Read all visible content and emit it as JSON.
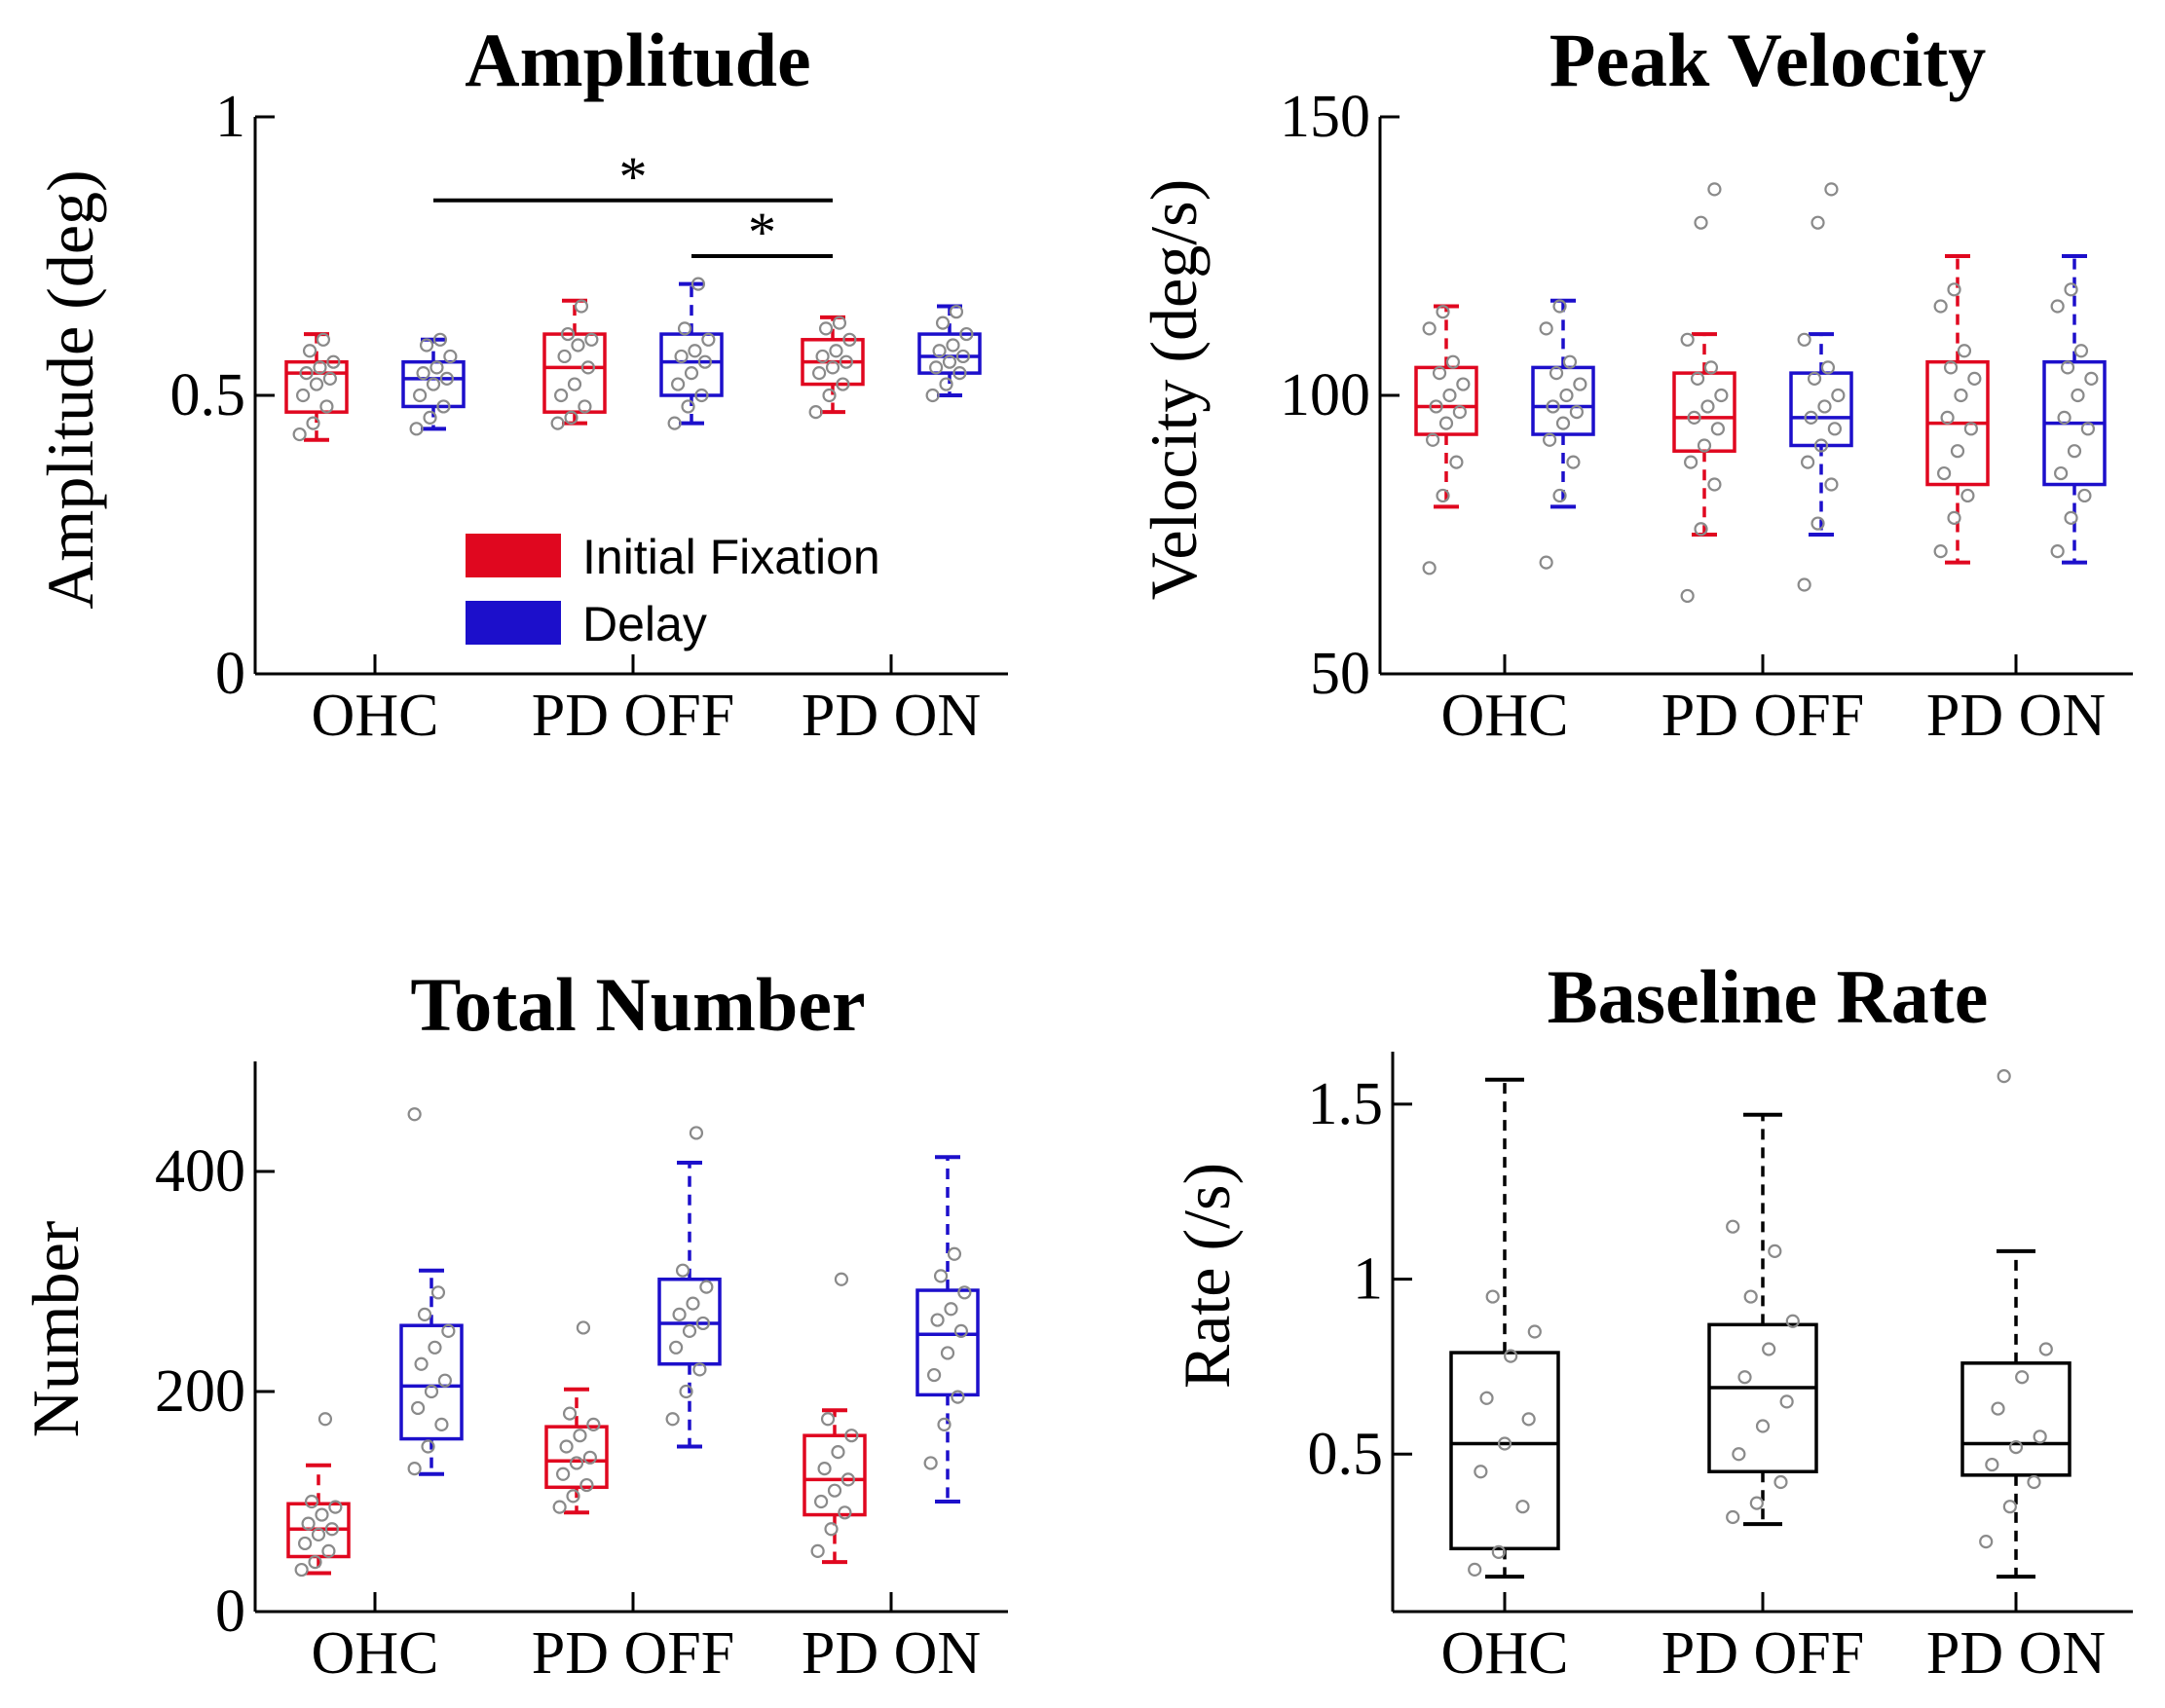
{
  "colors": {
    "initial": "#e0071f",
    "delay": "#1c0fcb",
    "black": "#000000",
    "dots": "#8a8a8a"
  },
  "legend": [
    {
      "label": "Initial Fixation",
      "color": "#e0071f"
    },
    {
      "label": "Delay",
      "color": "#1c0fcb"
    }
  ],
  "chart_data": [
    {
      "type": "box",
      "title": "Amplitude",
      "ylabel": "Amplitude (deg)",
      "ylim": [
        0,
        1
      ],
      "yticks": [
        0,
        0.5,
        1
      ],
      "ytick_labels": [
        "0",
        "0.5",
        "1"
      ],
      "groups": [
        "OHC",
        "PD OFF",
        "PD ON"
      ],
      "significance": [
        {
          "from": "OHC:Delay",
          "to": "PD ON:Initial Fixation",
          "y": 0.85,
          "label": "*"
        },
        {
          "from": "PD OFF:Delay",
          "to": "PD ON:Initial Fixation",
          "y": 0.75,
          "label": "*"
        }
      ],
      "boxes": [
        {
          "group": "OHC",
          "series": "Initial Fixation",
          "whisker_low": 0.42,
          "q1": 0.47,
          "median": 0.54,
          "q3": 0.56,
          "whisker_high": 0.61,
          "points": [
            0.43,
            0.45,
            0.48,
            0.5,
            0.52,
            0.53,
            0.54,
            0.55,
            0.56,
            0.58,
            0.6
          ]
        },
        {
          "group": "OHC",
          "series": "Delay",
          "whisker_low": 0.44,
          "q1": 0.48,
          "median": 0.53,
          "q3": 0.56,
          "whisker_high": 0.6,
          "points": [
            0.44,
            0.46,
            0.48,
            0.5,
            0.52,
            0.53,
            0.54,
            0.55,
            0.57,
            0.59,
            0.6
          ]
        },
        {
          "group": "PD OFF",
          "series": "Initial Fixation",
          "whisker_low": 0.45,
          "q1": 0.47,
          "median": 0.55,
          "q3": 0.61,
          "whisker_high": 0.67,
          "points": [
            0.45,
            0.46,
            0.48,
            0.5,
            0.52,
            0.55,
            0.57,
            0.59,
            0.6,
            0.61,
            0.66
          ]
        },
        {
          "group": "PD OFF",
          "series": "Delay",
          "whisker_low": 0.45,
          "q1": 0.5,
          "median": 0.56,
          "q3": 0.61,
          "whisker_high": 0.7,
          "points": [
            0.45,
            0.48,
            0.5,
            0.52,
            0.54,
            0.56,
            0.57,
            0.58,
            0.6,
            0.62,
            0.7
          ]
        },
        {
          "group": "PD ON",
          "series": "Initial Fixation",
          "whisker_low": 0.47,
          "q1": 0.52,
          "median": 0.56,
          "q3": 0.6,
          "whisker_high": 0.64,
          "points": [
            0.47,
            0.5,
            0.52,
            0.54,
            0.55,
            0.56,
            0.57,
            0.58,
            0.6,
            0.62,
            0.63
          ]
        },
        {
          "group": "PD ON",
          "series": "Delay",
          "whisker_low": 0.5,
          "q1": 0.54,
          "median": 0.57,
          "q3": 0.61,
          "whisker_high": 0.66,
          "points": [
            0.5,
            0.52,
            0.54,
            0.55,
            0.56,
            0.57,
            0.58,
            0.59,
            0.61,
            0.63,
            0.65
          ]
        }
      ]
    },
    {
      "type": "box",
      "title": "Peak Velocity",
      "ylabel": "Velocity (deg/s)",
      "ylim": [
        50,
        150
      ],
      "yticks": [
        50,
        100,
        150
      ],
      "ytick_labels": [
        "50",
        "100",
        "150"
      ],
      "groups": [
        "OHC",
        "PD OFF",
        "PD ON"
      ],
      "boxes": [
        {
          "group": "OHC",
          "series": "Initial Fixation",
          "whisker_low": 80,
          "q1": 93,
          "median": 98,
          "q3": 105,
          "whisker_high": 116,
          "points": [
            69,
            82,
            88,
            92,
            95,
            97,
            98,
            100,
            102,
            104,
            106,
            112,
            115
          ]
        },
        {
          "group": "OHC",
          "series": "Delay",
          "whisker_low": 80,
          "q1": 93,
          "median": 98,
          "q3": 105,
          "whisker_high": 117,
          "points": [
            70,
            82,
            88,
            92,
            95,
            97,
            98,
            100,
            102,
            104,
            106,
            112,
            116
          ]
        },
        {
          "group": "PD OFF",
          "series": "Initial Fixation",
          "whisker_low": 75,
          "q1": 90,
          "median": 96,
          "q3": 104,
          "whisker_high": 111,
          "points": [
            64,
            76,
            84,
            88,
            91,
            94,
            96,
            98,
            100,
            103,
            105,
            110,
            131,
            137
          ]
        },
        {
          "group": "PD OFF",
          "series": "Delay",
          "whisker_low": 75,
          "q1": 91,
          "median": 96,
          "q3": 104,
          "whisker_high": 111,
          "points": [
            66,
            77,
            84,
            88,
            91,
            94,
            96,
            98,
            100,
            103,
            105,
            110,
            131,
            137
          ]
        },
        {
          "group": "PD ON",
          "series": "Initial Fixation",
          "whisker_low": 70,
          "q1": 84,
          "median": 95,
          "q3": 106,
          "whisker_high": 125,
          "points": [
            72,
            78,
            82,
            86,
            90,
            94,
            96,
            100,
            103,
            105,
            108,
            116,
            119
          ]
        },
        {
          "group": "PD ON",
          "series": "Delay",
          "whisker_low": 70,
          "q1": 84,
          "median": 95,
          "q3": 106,
          "whisker_high": 125,
          "points": [
            72,
            78,
            82,
            86,
            90,
            94,
            96,
            100,
            103,
            105,
            108,
            116,
            119
          ]
        }
      ]
    },
    {
      "type": "box",
      "title": "Total Number",
      "ylabel": "Number",
      "ylim": [
        0,
        500
      ],
      "yticks": [
        0,
        200,
        400
      ],
      "ytick_labels": [
        "0",
        "200",
        "400"
      ],
      "groups": [
        "OHC",
        "PD OFF",
        "PD ON"
      ],
      "boxes": [
        {
          "group": "OHC",
          "series": "Initial Fixation",
          "whisker_low": 35,
          "q1": 50,
          "median": 75,
          "q3": 98,
          "whisker_high": 133,
          "points": [
            38,
            45,
            55,
            62,
            70,
            75,
            80,
            88,
            95,
            100,
            175
          ]
        },
        {
          "group": "OHC",
          "series": "Delay",
          "whisker_low": 125,
          "q1": 157,
          "median": 205,
          "q3": 260,
          "whisker_high": 310,
          "points": [
            130,
            150,
            170,
            185,
            200,
            210,
            225,
            240,
            255,
            270,
            290,
            452
          ]
        },
        {
          "group": "PD OFF",
          "series": "Initial Fixation",
          "whisker_low": 90,
          "q1": 113,
          "median": 137,
          "q3": 168,
          "whisker_high": 202,
          "points": [
            95,
            105,
            115,
            125,
            135,
            140,
            150,
            160,
            170,
            180,
            258
          ]
        },
        {
          "group": "PD OFF",
          "series": "Delay",
          "whisker_low": 150,
          "q1": 225,
          "median": 262,
          "q3": 302,
          "whisker_high": 408,
          "points": [
            175,
            200,
            220,
            240,
            255,
            262,
            270,
            280,
            295,
            310,
            435
          ]
        },
        {
          "group": "PD ON",
          "series": "Initial Fixation",
          "whisker_low": 45,
          "q1": 88,
          "median": 120,
          "q3": 160,
          "whisker_high": 183,
          "points": [
            55,
            75,
            90,
            100,
            110,
            120,
            130,
            145,
            160,
            175,
            302
          ]
        },
        {
          "group": "PD ON",
          "series": "Delay",
          "whisker_low": 100,
          "q1": 197,
          "median": 252,
          "q3": 292,
          "whisker_high": 413,
          "points": [
            135,
            170,
            195,
            215,
            235,
            255,
            265,
            275,
            290,
            305,
            325
          ]
        }
      ]
    },
    {
      "type": "box",
      "title": "Baseline Rate",
      "ylabel": "Rate (/s)",
      "ylim": [
        0.05,
        1.65
      ],
      "yticks": [
        0.5,
        1,
        1.5
      ],
      "ytick_labels": [
        "0.5",
        "1",
        "1.5"
      ],
      "groups": [
        "OHC",
        "PD OFF",
        "PD ON"
      ],
      "boxes": [
        {
          "group": "OHC",
          "series": "Baseline",
          "whisker_low": 0.15,
          "q1": 0.23,
          "median": 0.53,
          "q3": 0.79,
          "whisker_high": 1.57,
          "points": [
            0.17,
            0.22,
            0.35,
            0.45,
            0.53,
            0.6,
            0.66,
            0.78,
            0.85,
            0.95
          ]
        },
        {
          "group": "PD OFF",
          "series": "Baseline",
          "whisker_low": 0.3,
          "q1": 0.45,
          "median": 0.69,
          "q3": 0.87,
          "whisker_high": 1.47,
          "points": [
            0.32,
            0.36,
            0.42,
            0.5,
            0.58,
            0.65,
            0.72,
            0.8,
            0.88,
            0.95,
            1.08,
            1.15
          ]
        },
        {
          "group": "PD ON",
          "series": "Baseline",
          "whisker_low": 0.15,
          "q1": 0.44,
          "median": 0.53,
          "q3": 0.76,
          "whisker_high": 1.08,
          "points": [
            0.25,
            0.35,
            0.42,
            0.47,
            0.52,
            0.55,
            0.63,
            0.72,
            0.8,
            1.58
          ]
        }
      ]
    }
  ]
}
